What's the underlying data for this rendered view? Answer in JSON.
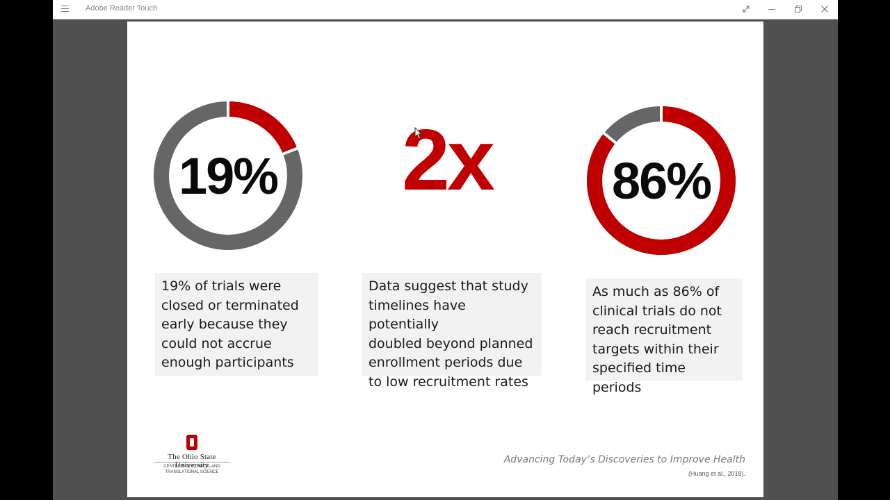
{
  "app": {
    "title": "Adobe Reader Touch"
  },
  "slide": {
    "stats": [
      {
        "label": "19%",
        "percent": 19,
        "caption_lines": [
          "19% of trials were",
          "closed or terminated",
          "early because they",
          "could not accrue",
          "enough participants"
        ]
      },
      {
        "label": "2x",
        "caption_lines": [
          "Data suggest that study",
          "timelines have potentially",
          "doubled beyond planned",
          "enrollment periods due",
          "to low recruitment rates"
        ]
      },
      {
        "label": "86%",
        "percent": 86,
        "caption_lines": [
          "As much as 86% of",
          "clinical trials do not",
          "reach recruitment",
          "targets within their",
          "specified time periods"
        ]
      }
    ],
    "logo": {
      "name": "The Ohio State University",
      "sub_lines": [
        "CENTER FOR CLINICAL AND",
        "TRANSLATIONAL SCIENCE"
      ]
    },
    "tagline": "Advancing Today’s Discoveries to Improve Health",
    "citation": "(Huang et al., 2018)."
  },
  "colors": {
    "accent": "#c00000",
    "remainder": "#666666",
    "caption_bg": "#f2f2f2"
  },
  "icons": [
    "menu-icon",
    "fullscreen-icon",
    "minimize-icon",
    "restore-icon",
    "close-icon",
    "mouse-cursor-icon"
  ]
}
